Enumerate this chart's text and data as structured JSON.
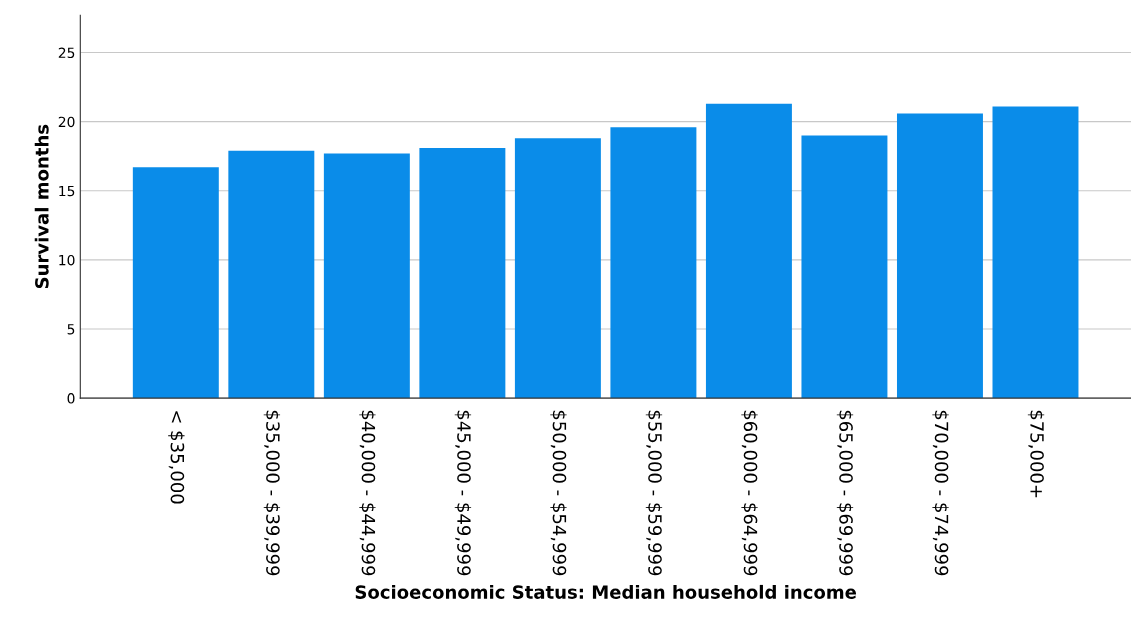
{
  "chart_data": {
    "type": "bar",
    "xlabel": "Socioeconomic Status: Median household income",
    "ylabel": "Survival months",
    "categories": [
      "< $35,000",
      "$35,000 - $39,999",
      "$40,000 - $44,999",
      "$45,000 - $49,999",
      "$50,000 - $54,999",
      "$55,000 - $59,999",
      "$60,000 - $64,999",
      "$65,000 - $69,999",
      "$70,000 - $74,999",
      "$75,000+"
    ],
    "values": [
      16.7,
      17.9,
      17.7,
      18.1,
      18.8,
      19.6,
      21.3,
      19.0,
      20.6,
      21.1
    ],
    "color": "#0a8ce9",
    "ylim": [
      0,
      27.7
    ],
    "yticks": [
      0,
      5,
      10,
      15,
      20,
      25
    ],
    "grid": "y",
    "legend": false
  }
}
